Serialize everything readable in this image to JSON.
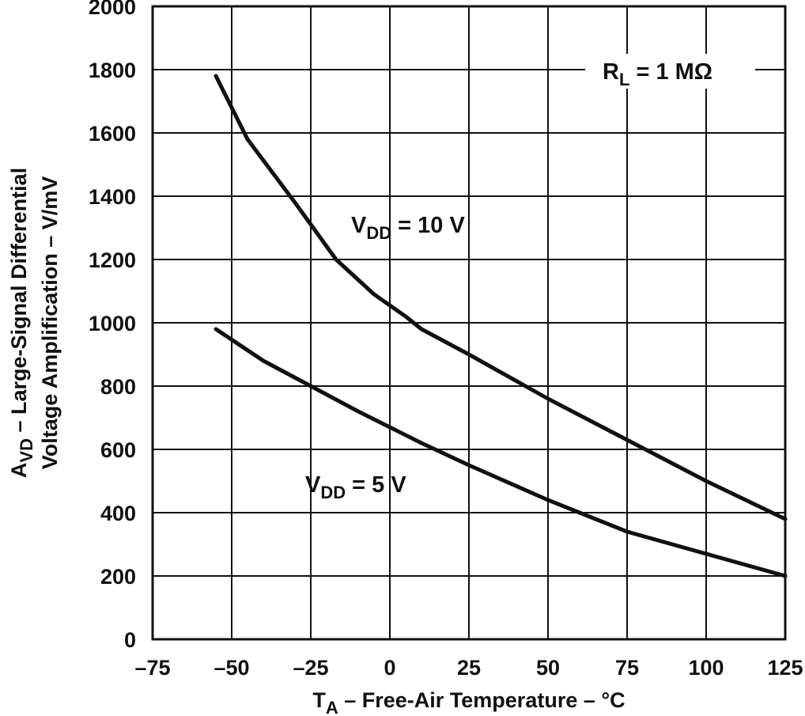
{
  "chart_data": {
    "type": "line",
    "xlabel": {
      "main": "T",
      "sub": "A",
      "rest": " – Free-Air Temperature – °C"
    },
    "ylabel": {
      "line1_main": "A",
      "line1_sub": "VD",
      "line1_rest": " – Large-Signal Differential",
      "line2": "Voltage Amplification – V/mV"
    },
    "xlim": [
      -75,
      125
    ],
    "ylim": [
      0,
      2000
    ],
    "x_ticks": [
      -75,
      -50,
      -25,
      0,
      25,
      50,
      75,
      100,
      125
    ],
    "x_tick_labels": [
      "–75",
      "–50",
      "–25",
      "0",
      "25",
      "50",
      "75",
      "100",
      "125"
    ],
    "y_ticks": [
      0,
      200,
      400,
      600,
      800,
      1000,
      1200,
      1400,
      1600,
      1800,
      2000
    ],
    "y_tick_labels": [
      "0",
      "200",
      "400",
      "600",
      "800",
      "1000",
      "1200",
      "1400",
      "1600",
      "1800",
      "2000"
    ],
    "grid": true,
    "series": [
      {
        "name": "VDD = 10 V",
        "x": [
          -55,
          -45,
          -30,
          -17,
          -5,
          5,
          10,
          25,
          50,
          75,
          100,
          125
        ],
        "y": [
          1780,
          1580,
          1380,
          1200,
          1090,
          1020,
          980,
          900,
          760,
          630,
          500,
          380
        ]
      },
      {
        "name": "VDD = 5 V",
        "x": [
          -55,
          -40,
          -25,
          -10,
          0,
          10,
          25,
          50,
          75,
          100,
          125
        ],
        "y": [
          980,
          880,
          800,
          720,
          670,
          620,
          550,
          440,
          340,
          270,
          200
        ]
      }
    ],
    "annotations": [
      {
        "main": "R",
        "sub": "L",
        "rest": " = 1 MΩ"
      },
      {
        "main": "V",
        "sub": "DD",
        "rest": " = 10 V"
      },
      {
        "main": "V",
        "sub": "DD",
        "rest": " = 5 V"
      }
    ]
  }
}
